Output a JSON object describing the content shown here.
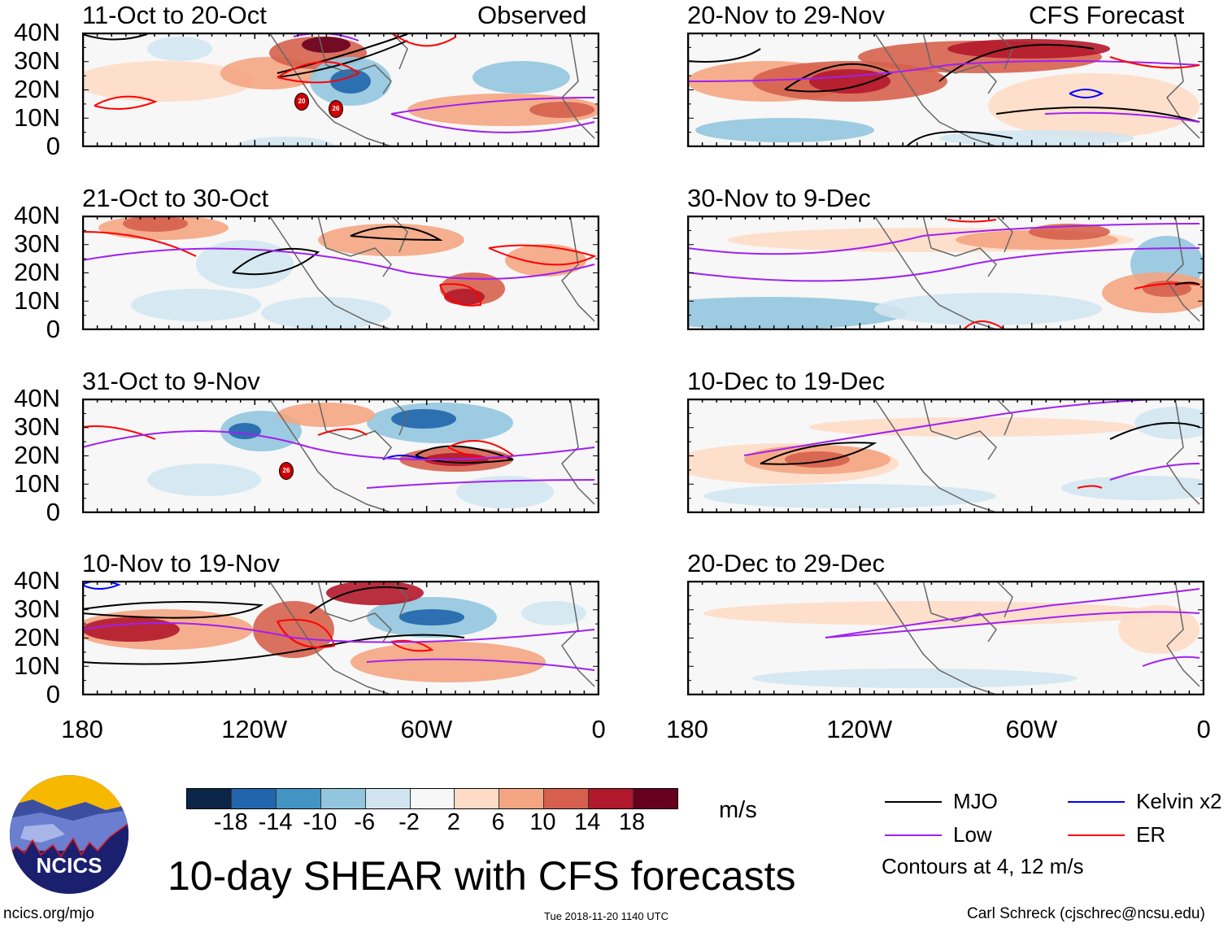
{
  "figure_title": "10-day SHEAR with CFS forecasts",
  "columns": {
    "left_label": "Observed",
    "right_label": "CFS Forecast"
  },
  "panels": [
    {
      "title": "11-Oct to 20-Oct",
      "type": "observed"
    },
    {
      "title": "21-Oct to 30-Oct",
      "type": "observed"
    },
    {
      "title": "31-Oct to 9-Nov",
      "type": "observed"
    },
    {
      "title": "10-Nov to 19-Nov",
      "type": "observed"
    },
    {
      "title": "20-Nov to 29-Nov",
      "type": "forecast"
    },
    {
      "title": "30-Nov to 9-Dec",
      "type": "forecast"
    },
    {
      "title": "10-Dec to 19-Dec",
      "type": "forecast"
    },
    {
      "title": "20-Dec to 29-Dec",
      "type": "forecast"
    }
  ],
  "lat_ticks": [
    "40N",
    "30N",
    "20N",
    "10N",
    "0"
  ],
  "lon_ticks": [
    "180",
    "120W",
    "60W",
    "0"
  ],
  "colorbar": {
    "unit": "m/s",
    "labels": [
      "-18",
      "-14",
      "-10",
      "-6",
      "-2",
      "2",
      "6",
      "10",
      "14",
      "18"
    ],
    "colors": [
      "#0b2548",
      "#2166ac",
      "#4393c3",
      "#92c5de",
      "#d1e5f0",
      "#f7f7f7",
      "#fddbc7",
      "#f4a582",
      "#d6604d",
      "#b2182b",
      "#67001f"
    ]
  },
  "legend": {
    "items": [
      {
        "label": "MJO",
        "color": "#000000"
      },
      {
        "label": "Kelvin x2",
        "color": "#0000ff"
      },
      {
        "label": "Low",
        "color": "#a020f0"
      },
      {
        "label": "ER",
        "color": "#ff0000"
      }
    ],
    "note": "Contours at 4, 12 m/s"
  },
  "logo": {
    "text": "NCICS"
  },
  "footer": {
    "url": "ncics.org/mjo",
    "timestamp": "Tue 2018-11-20 1140 UTC",
    "credit": "Carl Schreck (cjschrec@ncsu.edu)"
  },
  "storm_markers": [
    "20",
    "26"
  ]
}
